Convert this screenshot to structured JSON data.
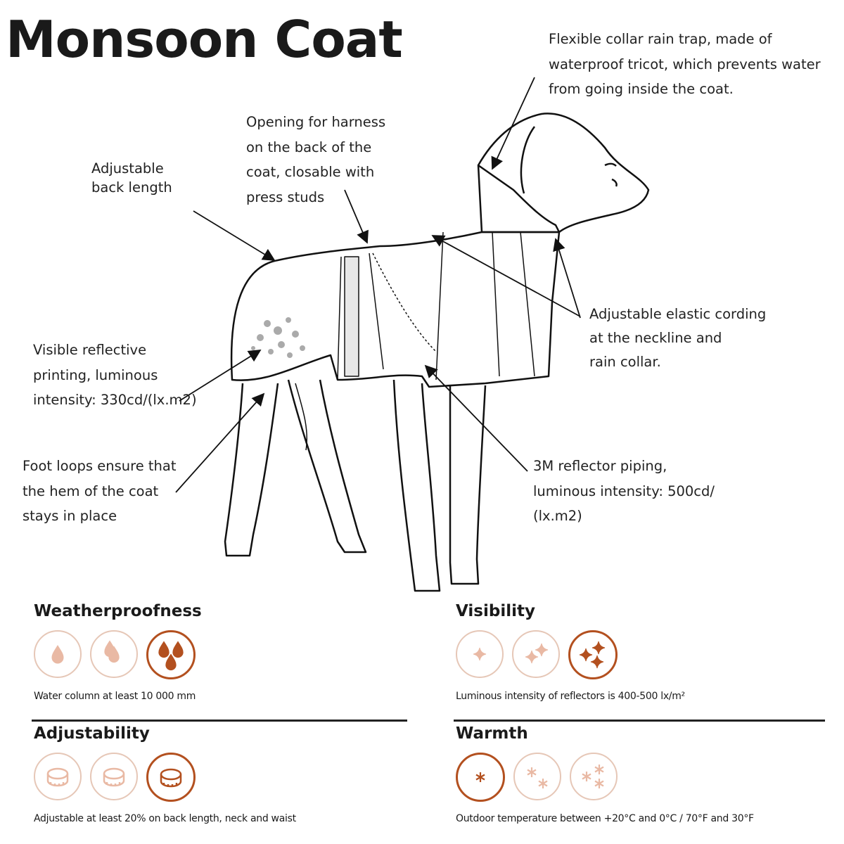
{
  "title": "Monsoon Coat",
  "annotations": {
    "collar": "Flexible collar rain trap, made of\nwaterproof tricot, which prevents water\nfrom going inside the coat.",
    "harness": "Opening for harness\non the back of the\ncoat, closable with\npress studs",
    "back_length": "Adjustable\nback length",
    "reflective_printing": "Visible reflective\nprinting, luminous\nintensity: 330cd/(lx.m2)",
    "foot_loops": "Foot loops ensure that\nthe hem of the coat\nstays in place",
    "elastic_cording": "Adjustable elastic cording\nat the neckline and\nrain collar.",
    "reflector_piping": "3M reflector piping,\nluminous intensity: 500cd/\n(lx.m2)"
  },
  "colors": {
    "active": "#b3501f",
    "inactive": "#e6c7b7",
    "inactive_fill": "#e9b9a4"
  },
  "features": [
    {
      "heading": "Weatherproofness",
      "icon": "water-drop-icon",
      "level": 3,
      "max": 3,
      "caption": "Water column at least 10 000 mm"
    },
    {
      "heading": "Visibility",
      "icon": "sparkle-icon",
      "level": 3,
      "max": 3,
      "caption": "Luminous intensity of reflectors is 400-500 lx/m²"
    },
    {
      "heading": "Adjustability",
      "icon": "measuring-tape-icon",
      "level": 3,
      "max": 3,
      "caption": "Adjustable at least 20% on back length, neck and waist"
    },
    {
      "heading": "Warmth",
      "icon": "snowflake-icon",
      "level": 1,
      "max": 3,
      "caption": "Outdoor temperature between +20°C and 0°C / 70°F and 30°F"
    }
  ]
}
